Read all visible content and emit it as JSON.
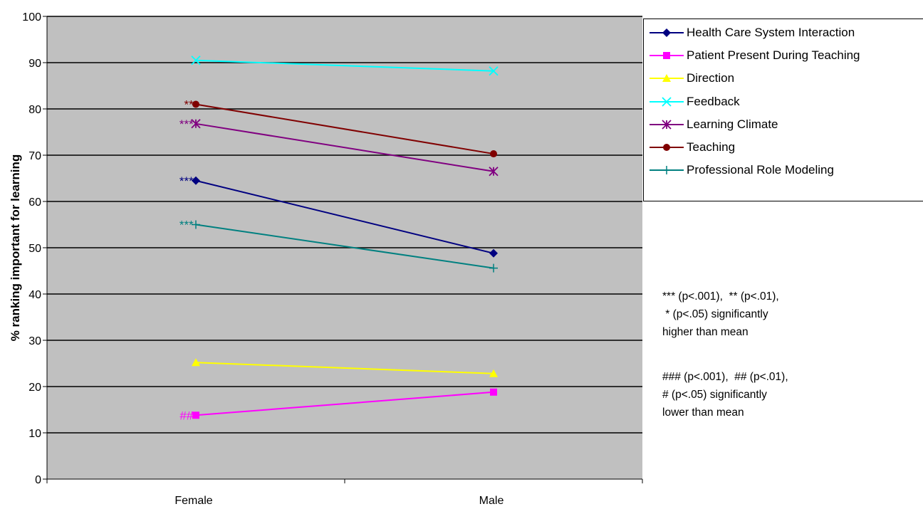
{
  "chart_data": {
    "type": "line",
    "title": "",
    "xlabel": "",
    "ylabel": "% ranking important for learning",
    "categories": [
      "Female",
      "Male"
    ],
    "ylim": [
      0,
      100
    ],
    "yticks": [
      "0",
      "10",
      "20",
      "30",
      "40",
      "50",
      "60",
      "70",
      "80",
      "90",
      "100"
    ],
    "grid": true,
    "legend_position": "right",
    "series": [
      {
        "name": "Health Care System Interaction",
        "values": [
          64.5,
          48.8
        ],
        "color": "#000080",
        "marker": "diamond",
        "annotations": [
          "***",
          ""
        ],
        "annotation_color": "#000080"
      },
      {
        "name": "Patient Present During Teaching",
        "values": [
          13.8,
          18.8
        ],
        "color": "#ff00ff",
        "marker": "square",
        "annotations": [
          "##",
          ""
        ],
        "annotation_color": "#ff00ff"
      },
      {
        "name": "Direction",
        "values": [
          25.2,
          22.8
        ],
        "color": "#ffff00",
        "marker": "triangle",
        "annotations": [
          "",
          ""
        ],
        "annotation_color": "#ffff00"
      },
      {
        "name": "Feedback",
        "values": [
          90.5,
          88.2
        ],
        "color": "#00ffff",
        "marker": "x",
        "annotations": [
          "",
          ""
        ],
        "annotation_color": "#00ffff"
      },
      {
        "name": "Learning Climate",
        "values": [
          76.8,
          66.5
        ],
        "color": "#800080",
        "marker": "star",
        "annotations": [
          "***",
          ""
        ],
        "annotation_color": "#800080"
      },
      {
        "name": "Teaching",
        "values": [
          81.0,
          70.3
        ],
        "color": "#800000",
        "marker": "circle",
        "annotations": [
          "**",
          ""
        ],
        "annotation_color": "#800000"
      },
      {
        "name": "Professional Role Modeling",
        "values": [
          55.0,
          45.6
        ],
        "color": "#008080",
        "marker": "plus",
        "annotations": [
          "***",
          ""
        ],
        "annotation_color": "#008080"
      }
    ]
  },
  "notes": {
    "higher": [
      "*** (p<.001),  ** (p<.01),",
      " * (p<.05) significantly",
      "higher than mean"
    ],
    "lower": [
      "### (p<.001),  ## (p<.01),",
      "# (p<.05) significantly",
      "lower than mean"
    ]
  }
}
